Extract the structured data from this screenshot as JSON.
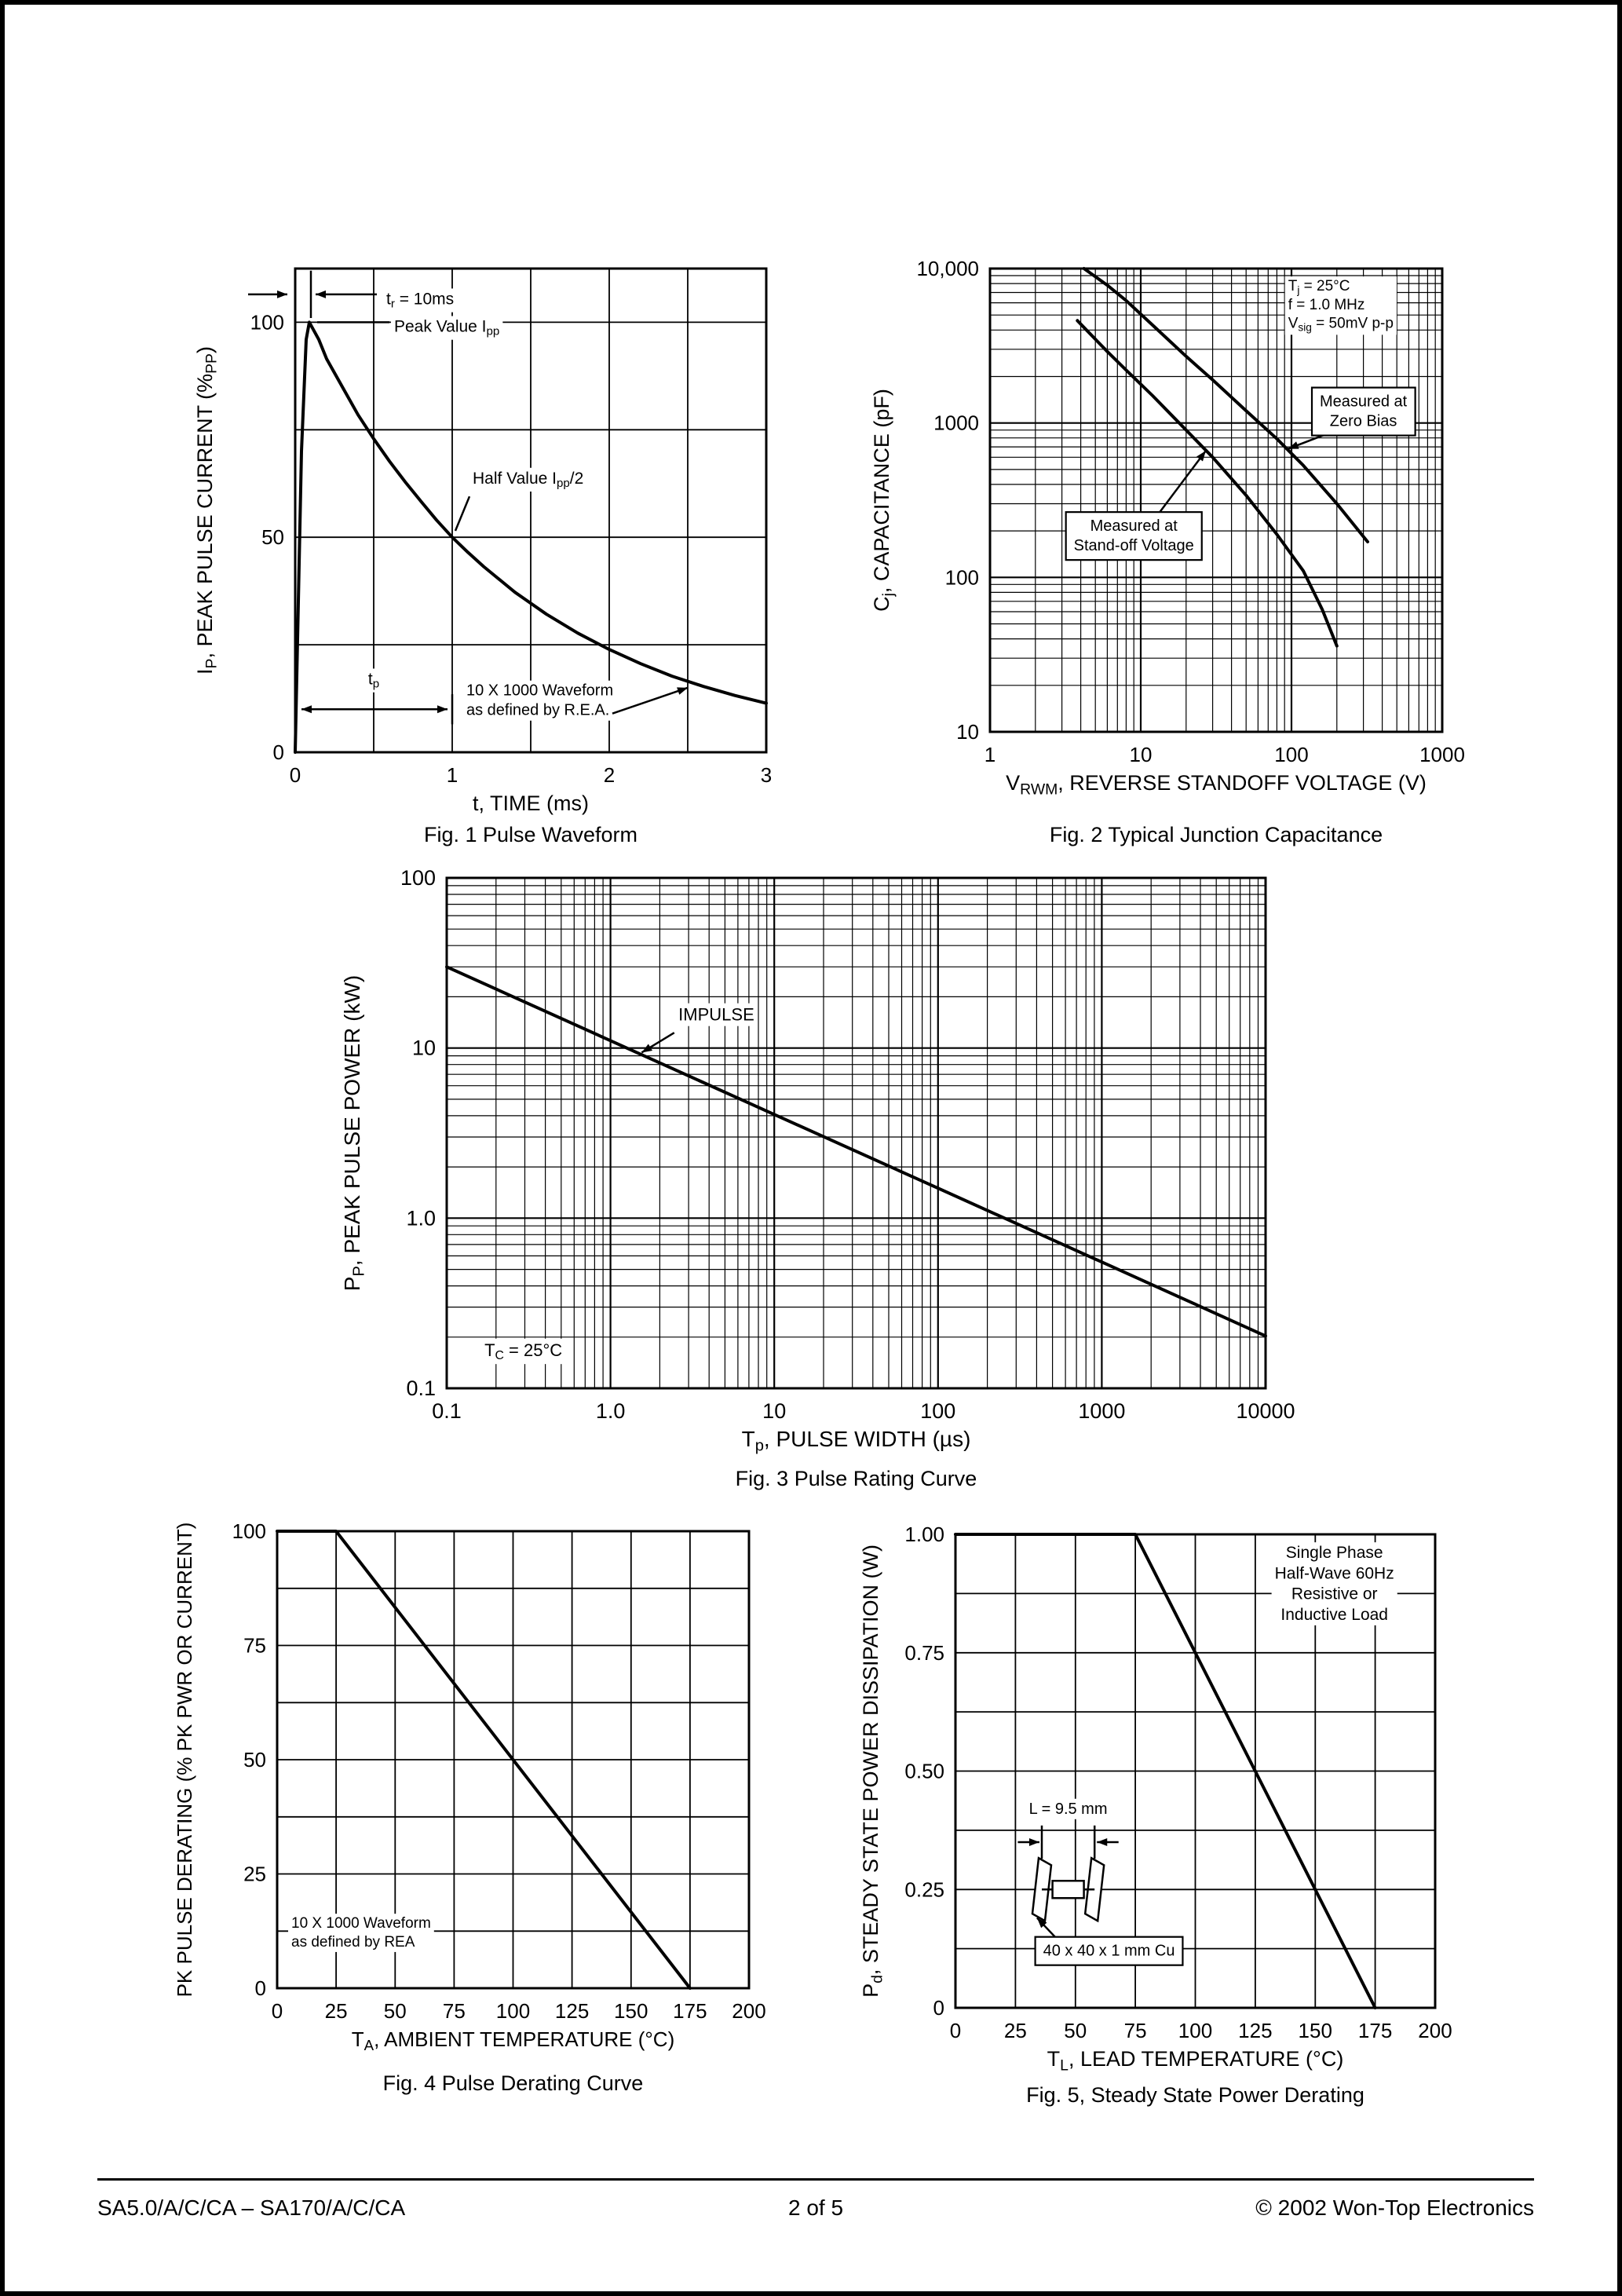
{
  "footer": {
    "left": "SA5.0/A/C/CA – SA170/A/C/CA",
    "center": "2  of  5",
    "right": "© 2002 Won-Top Electronics"
  },
  "chart_data": [
    {
      "id": "fig1",
      "type": "line",
      "caption": "Fig. 1  Pulse Waveform",
      "xlabel": "t, TIME (ms)",
      "ylabel": "I_{P}, PEAK PULSE CURRENT (%_{PP})",
      "x": {
        "scale": "linear",
        "min": 0,
        "max": 3,
        "grid_step": 0.5,
        "ticks": [
          {
            "v": 0,
            "label": "0"
          },
          {
            "v": 1,
            "label": "1"
          },
          {
            "v": 2,
            "label": "2"
          },
          {
            "v": 3,
            "label": "3"
          }
        ]
      },
      "y": {
        "scale": "linear",
        "min": 0,
        "max": 112.5,
        "grid_step": 25,
        "ticks": [
          {
            "v": 0,
            "label": "0"
          },
          {
            "v": 50,
            "label": "50"
          },
          {
            "v": 100,
            "label": "100"
          }
        ]
      },
      "series": [
        {
          "name": "rea-10x1000-pulse",
          "points": [
            [
              0,
              0
            ],
            [
              0.04,
              70
            ],
            [
              0.07,
              96
            ],
            [
              0.09,
              100
            ],
            [
              0.15,
              96
            ],
            [
              0.2,
              91.5
            ],
            [
              0.3,
              85
            ],
            [
              0.4,
              78.5
            ],
            [
              0.5,
              72.9
            ],
            [
              0.6,
              67.7
            ],
            [
              0.7,
              62.9
            ],
            [
              0.8,
              58.4
            ],
            [
              0.9,
              54
            ],
            [
              1.0,
              50
            ],
            [
              1.1,
              46.5
            ],
            [
              1.2,
              43.2
            ],
            [
              1.4,
              37.2
            ],
            [
              1.6,
              32.1
            ],
            [
              1.8,
              27.7
            ],
            [
              2.0,
              23.9
            ],
            [
              2.2,
              20.6
            ],
            [
              2.4,
              17.7
            ],
            [
              2.6,
              15.3
            ],
            [
              2.8,
              13.2
            ],
            [
              3.0,
              11.4
            ]
          ]
        }
      ],
      "annotations": [
        {
          "arrow": {
            "x1": -0.3,
            "y1": 106.5,
            "x2": -0.05,
            "y2": 106.5
          }
        },
        {
          "arrow": {
            "x1": 0.52,
            "y1": 106.5,
            "x2": 0.13,
            "y2": 106.5
          }
        },
        {
          "line": [
            [
              0.1,
              101
            ],
            [
              0.1,
              112
            ]
          ]
        },
        {
          "text": "t_{r} = 10ms",
          "x": 0.58,
          "y": 104.2,
          "align": "left"
        },
        {
          "line": [
            [
              0.14,
              100
            ],
            [
              0.6,
              100
            ]
          ]
        },
        {
          "text": "Peak Value I_{pp}",
          "x": 0.63,
          "y": 97.8,
          "align": "left"
        },
        {
          "line": [
            [
              1.02,
              51.5
            ],
            [
              1.11,
              59.5
            ]
          ]
        },
        {
          "text": "Half Value I_{pp}/2",
          "x": 1.13,
          "y": 62.5,
          "align": "left"
        },
        {
          "arrow": {
            "x1": 0.04,
            "y1": 10,
            "x2": 0.97,
            "y2": 10,
            "double": true
          }
        },
        {
          "line": [
            [
              1.0,
              6.5
            ],
            [
              1.0,
              13.5
            ]
          ]
        },
        {
          "text": "t_{p}",
          "x": 0.5,
          "y": 15.8,
          "align": "center"
        },
        {
          "lines": [
            "10 X 1000 Waveform",
            "as defined by R.E.A."
          ],
          "x": 1.09,
          "y": 13.2,
          "align": "left",
          "size": 20
        },
        {
          "arrow": {
            "x1": 2.02,
            "y1": 9.0,
            "x2": 2.5,
            "y2": 15.0
          }
        }
      ]
    },
    {
      "id": "fig2",
      "type": "line",
      "caption": "Fig. 2 Typical Junction Capacitance",
      "xlabel": "V_{RWM}, REVERSE STANDOFF VOLTAGE (V)",
      "ylabel": "C_{j}, CAPACITANCE (pF)",
      "x": {
        "scale": "log",
        "min": 1,
        "max": 1000,
        "ticks": [
          {
            "v": 1,
            "label": "1"
          },
          {
            "v": 10,
            "label": "10"
          },
          {
            "v": 100,
            "label": "100"
          },
          {
            "v": 1000,
            "label": "1000"
          }
        ]
      },
      "y": {
        "scale": "log",
        "min": 10,
        "max": 10000,
        "ticks": [
          {
            "v": 10,
            "label": "10"
          },
          {
            "v": 100,
            "label": "100"
          },
          {
            "v": 1000,
            "label": "1000"
          },
          {
            "v": 10000,
            "label": "10,000"
          }
        ]
      },
      "series": [
        {
          "name": "measured-at-zero-bias",
          "points": [
            [
              4.2,
              10000
            ],
            [
              6,
              7800
            ],
            [
              8,
              6200
            ],
            [
              12,
              4300
            ],
            [
              20,
              2700
            ],
            [
              30,
              1900
            ],
            [
              50,
              1200
            ],
            [
              80,
              790
            ],
            [
              120,
              530
            ],
            [
              200,
              300
            ],
            [
              320,
              170
            ]
          ]
        },
        {
          "name": "measured-at-standoff-voltage",
          "points": [
            [
              3.8,
              4600
            ],
            [
              6,
              2900
            ],
            [
              8,
              2200
            ],
            [
              12,
              1500
            ],
            [
              20,
              900
            ],
            [
              30,
              600
            ],
            [
              50,
              340
            ],
            [
              80,
              190
            ],
            [
              120,
              110
            ],
            [
              160,
              62
            ],
            [
              200,
              36
            ]
          ]
        }
      ],
      "annotations": [
        {
          "lines": [
            "T_{j} = 25°C",
            "f = 1.0 MHz",
            "V_{sig} = 50mV p-p"
          ],
          "x": 95,
          "y": 7200,
          "align": "left",
          "size": 19
        },
        {
          "arrow": {
            "x1": 200,
            "y1": 900,
            "x2": 95,
            "y2": 680
          }
        },
        {
          "lines": [
            "Measured at",
            "Zero Bias"
          ],
          "x": 300,
          "y": 1280,
          "align": "center",
          "box": true
        },
        {
          "arrow": {
            "x1": 12,
            "y1": 230,
            "x2": 27,
            "y2": 660
          }
        },
        {
          "lines": [
            "Measured at",
            "Stand-off Voltage"
          ],
          "x": 9,
          "y": 200,
          "align": "center",
          "box": true
        }
      ]
    },
    {
      "id": "fig3",
      "type": "line",
      "caption": "Fig. 3 Pulse Rating Curve",
      "xlabel": "T_{p}, PULSE WIDTH (µs)",
      "ylabel": "P_{P}, PEAK PULSE POWER (kW)",
      "x": {
        "scale": "log",
        "min": 0.1,
        "max": 10000,
        "ticks": [
          {
            "v": 0.1,
            "label": "0.1"
          },
          {
            "v": 1,
            "label": "1.0"
          },
          {
            "v": 10,
            "label": "10"
          },
          {
            "v": 100,
            "label": "100"
          },
          {
            "v": 1000,
            "label": "1000"
          },
          {
            "v": 10000,
            "label": "10000"
          }
        ]
      },
      "y": {
        "scale": "log",
        "min": 0.1,
        "max": 100,
        "ticks": [
          {
            "v": 0.1,
            "label": "0.1"
          },
          {
            "v": 1,
            "label": "1.0"
          },
          {
            "v": 10,
            "label": "10"
          },
          {
            "v": 100,
            "label": "100"
          }
        ]
      },
      "series": [
        {
          "name": "impulse-rating",
          "points": [
            [
              0.1,
              30
            ],
            [
              1,
              11.05
            ],
            [
              10,
              4.07
            ],
            [
              100,
              1.5
            ],
            [
              1000,
              0.552
            ],
            [
              10000,
              0.203
            ]
          ]
        }
      ],
      "annotations": [
        {
          "text": "IMPULSE",
          "x": 2.6,
          "y": 14.5,
          "align": "left"
        },
        {
          "arrow": {
            "x1": 2.45,
            "y1": 12.3,
            "x2": 1.55,
            "y2": 9.4
          }
        },
        {
          "text": "T_{C} = 25°C",
          "x": 0.17,
          "y": 0.155,
          "align": "left"
        }
      ]
    },
    {
      "id": "fig4",
      "type": "line",
      "caption": "Fig. 4  Pulse Derating Curve",
      "xlabel": "T_{A}, AMBIENT TEMPERATURE (°C)",
      "ylabel": "PK PULSE DERATING (% PK PWR OR CURRENT)",
      "x": {
        "scale": "linear",
        "min": 0,
        "max": 200,
        "grid_step": 25,
        "ticks": [
          {
            "v": 0,
            "label": "0"
          },
          {
            "v": 25,
            "label": "25"
          },
          {
            "v": 50,
            "label": "50"
          },
          {
            "v": 75,
            "label": "75"
          },
          {
            "v": 100,
            "label": "100"
          },
          {
            "v": 125,
            "label": "125"
          },
          {
            "v": 150,
            "label": "150"
          },
          {
            "v": 175,
            "label": "175"
          },
          {
            "v": 200,
            "label": "200"
          }
        ]
      },
      "y": {
        "scale": "linear",
        "min": 0,
        "max": 100,
        "grid_step": 12.5,
        "ticks": [
          {
            "v": 0,
            "label": "0"
          },
          {
            "v": 25,
            "label": "25"
          },
          {
            "v": 50,
            "label": "50"
          },
          {
            "v": 75,
            "label": "75"
          },
          {
            "v": 100,
            "label": "100"
          }
        ]
      },
      "series": [
        {
          "name": "pulse-derating",
          "points": [
            [
              0,
              100
            ],
            [
              25,
              100
            ],
            [
              175,
              0
            ]
          ]
        }
      ],
      "annotations": [
        {
          "lines": [
            "10 X 1000 Waveform",
            "as defined by REA"
          ],
          "x": 6,
          "y": 13.2,
          "align": "left",
          "size": 19
        }
      ]
    },
    {
      "id": "fig5",
      "type": "line",
      "caption": "Fig. 5, Steady State Power Derating",
      "xlabel": "T_{L}, LEAD TEMPERATURE (°C)",
      "ylabel": "P_{d}, STEADY STATE POWER DISSIPATION (W)",
      "x": {
        "scale": "linear",
        "min": 0,
        "max": 200,
        "grid_step": 25,
        "ticks": [
          {
            "v": 0,
            "label": "0"
          },
          {
            "v": 25,
            "label": "25"
          },
          {
            "v": 50,
            "label": "50"
          },
          {
            "v": 75,
            "label": "75"
          },
          {
            "v": 100,
            "label": "100"
          },
          {
            "v": 125,
            "label": "125"
          },
          {
            "v": 150,
            "label": "150"
          },
          {
            "v": 175,
            "label": "175"
          },
          {
            "v": 200,
            "label": "200"
          }
        ]
      },
      "y": {
        "scale": "linear",
        "min": 0,
        "max": 1.0,
        "grid_step": 0.125,
        "ticks": [
          {
            "v": 0,
            "label": "0"
          },
          {
            "v": 0.25,
            "label": "0.25"
          },
          {
            "v": 0.5,
            "label": "0.50"
          },
          {
            "v": 0.75,
            "label": "0.75"
          },
          {
            "v": 1.0,
            "label": "1.00"
          }
        ]
      },
      "series": [
        {
          "name": "steady-state-power-derating",
          "points": [
            [
              0,
              1
            ],
            [
              75,
              1
            ],
            [
              175,
              0
            ]
          ]
        }
      ],
      "annotations": [
        {
          "lines": [
            "Single Phase",
            "Half-Wave 60Hz",
            "Resistive or",
            "Inductive Load"
          ],
          "x": 158,
          "y": 0.95,
          "align": "center",
          "size": 21
        },
        {
          "text": "L = 9.5 mm",
          "x": 47,
          "y": 0.41,
          "align": "center"
        },
        {
          "arrow": {
            "x1": 26,
            "y1": 0.35,
            "x2": 35,
            "y2": 0.35
          }
        },
        {
          "arrow": {
            "x1": 68,
            "y1": 0.35,
            "x2": 59,
            "y2": 0.35
          }
        },
        {
          "line": [
            [
              36,
              0.315
            ],
            [
              36,
              0.385
            ]
          ]
        },
        {
          "line": [
            [
              58,
              0.315
            ],
            [
              58,
              0.385
            ]
          ]
        },
        {
          "shape": "cu-assembly",
          "x": 47,
          "y": 0.25
        },
        {
          "arrow": {
            "x1": 48,
            "y1": 0.115,
            "x2": 34,
            "y2": 0.19
          }
        },
        {
          "lines": [
            "40 x 40 x 1 mm Cu"
          ],
          "x": 64,
          "y": 0.11,
          "align": "center",
          "box": true
        }
      ]
    }
  ]
}
